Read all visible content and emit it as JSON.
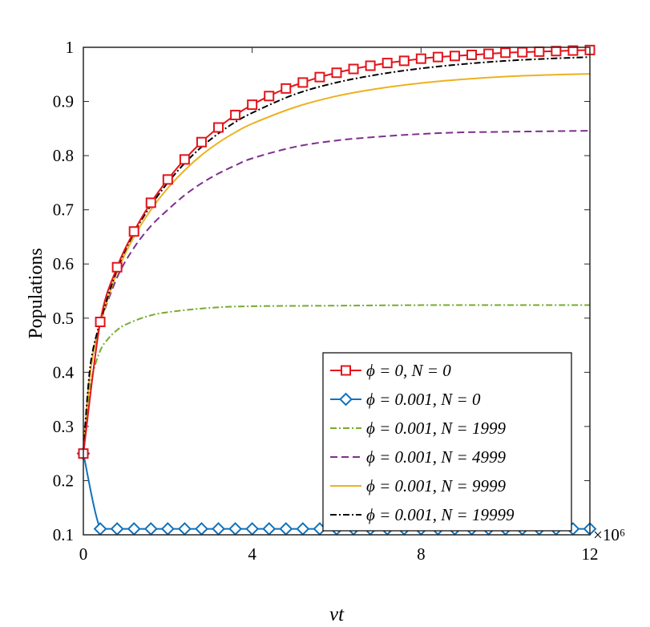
{
  "chart_data": {
    "type": "line",
    "title": "",
    "xlabel": "νt",
    "ylabel": "Populations",
    "xlim": [
      0,
      12
    ],
    "ylim": [
      0.1,
      1
    ],
    "x_scale_label": "×10⁶",
    "x_ticks": [
      "0",
      "4",
      "8",
      "12"
    ],
    "y_ticks": [
      "0.1",
      "0.2",
      "0.3",
      "0.4",
      "0.5",
      "0.6",
      "0.7",
      "0.8",
      "0.9",
      "1"
    ],
    "legend_position": "bottom-right",
    "series": [
      {
        "name": "ϕ = 0, N = 0",
        "color": "#e3141b",
        "style": "solid",
        "marker": "square",
        "x": [
          0,
          0.4,
          0.8,
          1.2,
          1.6,
          2.0,
          2.4,
          2.8,
          3.2,
          3.6,
          4.0,
          4.4,
          4.8,
          5.2,
          5.6,
          6.0,
          6.4,
          6.8,
          7.2,
          7.6,
          8.0,
          8.4,
          8.8,
          9.2,
          9.6,
          10.0,
          10.4,
          10.8,
          11.2,
          11.6,
          12.0
        ],
        "values": [
          0.25,
          0.493,
          0.594,
          0.66,
          0.713,
          0.756,
          0.793,
          0.825,
          0.852,
          0.875,
          0.894,
          0.91,
          0.924,
          0.935,
          0.945,
          0.953,
          0.96,
          0.966,
          0.971,
          0.975,
          0.979,
          0.982,
          0.984,
          0.986,
          0.988,
          0.99,
          0.991,
          0.992,
          0.993,
          0.994,
          0.995
        ]
      },
      {
        "name": "ϕ = 0.001, N = 0",
        "color": "#0f72bd",
        "style": "solid",
        "marker": "diamond",
        "x": [
          0,
          0.4,
          0.8,
          1.2,
          1.6,
          2.0,
          2.4,
          2.8,
          3.2,
          3.6,
          4.0,
          4.4,
          4.8,
          5.2,
          5.6,
          6.0,
          6.4,
          6.8,
          7.2,
          7.6,
          8.0,
          8.4,
          8.8,
          9.2,
          9.6,
          10.0,
          10.4,
          10.8,
          11.2,
          11.6,
          12.0
        ],
        "values": [
          0.25,
          0.111,
          0.111,
          0.111,
          0.111,
          0.111,
          0.111,
          0.111,
          0.111,
          0.111,
          0.111,
          0.111,
          0.111,
          0.111,
          0.111,
          0.111,
          0.111,
          0.111,
          0.111,
          0.111,
          0.111,
          0.111,
          0.111,
          0.111,
          0.111,
          0.111,
          0.111,
          0.111,
          0.111,
          0.111,
          0.111
        ]
      },
      {
        "name": "ϕ = 0.001, N = 1999",
        "color": "#76ab2f",
        "style": "dashdot",
        "marker": "none",
        "x": [
          0,
          0.1,
          0.2,
          0.4,
          0.6,
          0.8,
          1.0,
          1.5,
          2.0,
          3.0,
          4.0,
          6.0,
          8.0,
          10.0,
          12.0
        ],
        "values": [
          0.25,
          0.33,
          0.39,
          0.44,
          0.463,
          0.478,
          0.488,
          0.503,
          0.511,
          0.519,
          0.522,
          0.523,
          0.524,
          0.524,
          0.524
        ]
      },
      {
        "name": "ϕ = 0.001, N = 4999",
        "color": "#7e2f8e",
        "style": "dashed",
        "marker": "none",
        "x": [
          0,
          0.1,
          0.2,
          0.4,
          0.8,
          1.2,
          1.6,
          2.0,
          2.4,
          2.8,
          3.2,
          3.6,
          4.0,
          5.0,
          6.0,
          7.0,
          8.0,
          9.0,
          10.0,
          11.0,
          12.0
        ],
        "values": [
          0.25,
          0.35,
          0.42,
          0.49,
          0.575,
          0.63,
          0.67,
          0.7,
          0.727,
          0.749,
          0.767,
          0.782,
          0.795,
          0.816,
          0.828,
          0.835,
          0.84,
          0.843,
          0.844,
          0.845,
          0.846
        ]
      },
      {
        "name": "ϕ = 0.001, N = 9999",
        "color": "#edb120",
        "style": "solid",
        "marker": "none",
        "x": [
          0,
          0.1,
          0.2,
          0.4,
          0.8,
          1.2,
          1.6,
          2.0,
          2.4,
          2.8,
          3.2,
          3.6,
          4.0,
          5.0,
          6.0,
          7.0,
          8.0,
          9.0,
          10.0,
          11.0,
          12.0
        ],
        "values": [
          0.25,
          0.35,
          0.42,
          0.49,
          0.585,
          0.65,
          0.7,
          0.74,
          0.773,
          0.801,
          0.824,
          0.843,
          0.859,
          0.889,
          0.91,
          0.924,
          0.934,
          0.941,
          0.946,
          0.949,
          0.951
        ]
      },
      {
        "name": "ϕ = 0.001, N = 19999",
        "color": "#000000",
        "style": "dashdot",
        "marker": "none",
        "x": [
          0,
          0.1,
          0.2,
          0.4,
          0.8,
          1.2,
          1.6,
          2.0,
          2.4,
          2.8,
          3.2,
          3.6,
          4.0,
          5.0,
          6.0,
          7.0,
          8.0,
          9.0,
          10.0,
          11.0,
          12.0
        ],
        "values": [
          0.25,
          0.36,
          0.43,
          0.493,
          0.59,
          0.657,
          0.708,
          0.75,
          0.786,
          0.816,
          0.841,
          0.862,
          0.879,
          0.913,
          0.935,
          0.95,
          0.961,
          0.969,
          0.975,
          0.979,
          0.982
        ]
      }
    ]
  }
}
